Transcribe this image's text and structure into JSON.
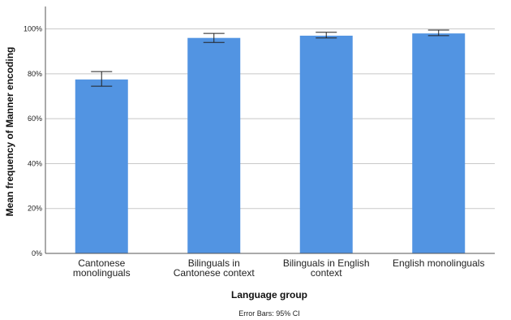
{
  "chart_data": {
    "type": "bar",
    "categories": [
      [
        "Cantonese",
        "monolinguals"
      ],
      [
        "Bilinguals in",
        "Cantonese context"
      ],
      [
        "Bilinguals in English",
        "context"
      ],
      [
        "English monolinguals"
      ]
    ],
    "values": [
      77.5,
      96.0,
      97.0,
      98.0
    ],
    "error_low": [
      74.5,
      94.0,
      96.0,
      97.0
    ],
    "error_high": [
      81.0,
      98.0,
      98.5,
      99.5
    ],
    "xlabel": "Language group",
    "ylabel": "Mean frequency of Manner encoding",
    "yticks": [
      "0%",
      "20%",
      "40%",
      "60%",
      "80%",
      "100%"
    ],
    "ylim": [
      0,
      110
    ],
    "grid": true,
    "bar_color": "#5294e2",
    "footnote": "Error Bars: 95% CI"
  }
}
